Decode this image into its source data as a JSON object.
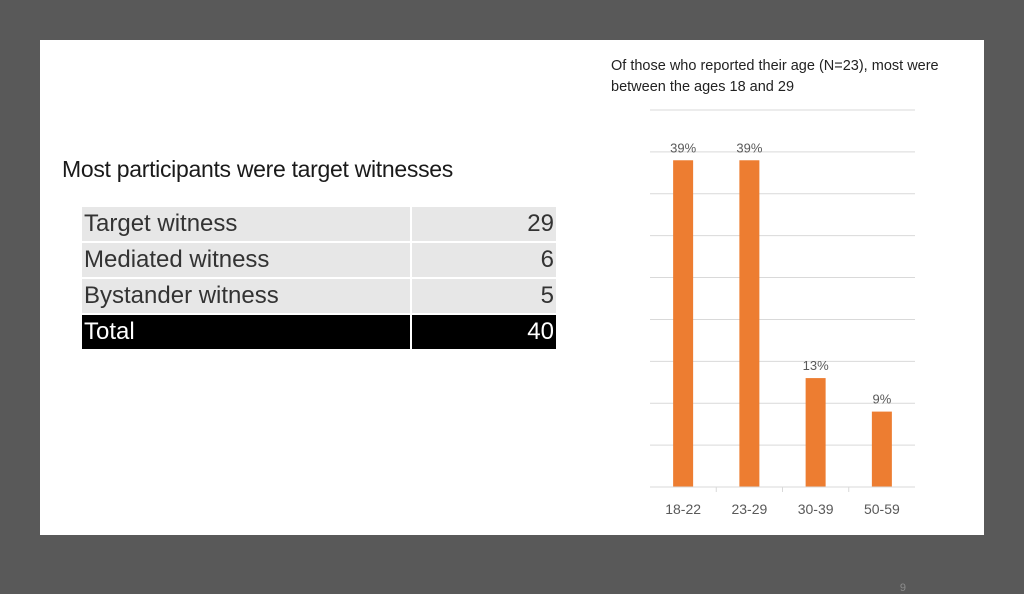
{
  "slide": {
    "heading": "Most participants were target witnesses",
    "page_number": "9"
  },
  "table": {
    "rows": [
      {
        "label": "Target witness",
        "value": "29"
      },
      {
        "label": "Mediated witness",
        "value": "6"
      },
      {
        "label": "Bystander witness",
        "value": "5"
      }
    ],
    "total": {
      "label": "Total",
      "value": "40"
    }
  },
  "chart_data": {
    "type": "bar",
    "title": "Of those who reported their age (N=23), most were between the ages 18 and 29",
    "categories": [
      "18-22",
      "23-29",
      "30-39",
      "50-59"
    ],
    "values": [
      39,
      39,
      13,
      9
    ],
    "data_labels": [
      "39%",
      "39%",
      "13%",
      "9%"
    ],
    "xlabel": "",
    "ylabel": "",
    "ylim": [
      0,
      45
    ],
    "grid": true,
    "legend": "none",
    "bar_color": "#ED7D31"
  }
}
